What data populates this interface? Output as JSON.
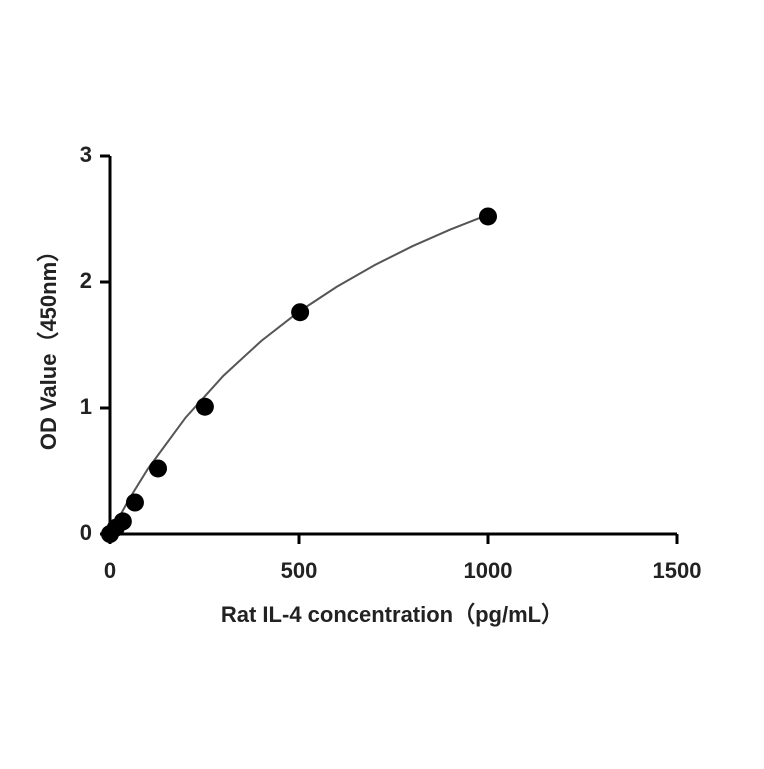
{
  "chart_data": {
    "type": "scatter",
    "x": [
      0,
      15.6,
      34,
      66,
      127,
      251,
      503,
      1000
    ],
    "values": [
      0.0,
      0.05,
      0.1,
      0.25,
      0.52,
      1.01,
      1.76,
      2.52
    ],
    "color": "#000000",
    "curve": {
      "x": [
        0,
        50,
        100,
        200,
        300,
        400,
        500,
        600,
        700,
        800,
        900,
        1000
      ],
      "values": [
        0,
        0.274,
        0.516,
        0.924,
        1.256,
        1.532,
        1.765,
        1.962,
        2.134,
        2.284,
        2.416,
        2.534
      ],
      "color": "#555555"
    },
    "xlabel": "Rat IL-4 concentration（pg/mL）",
    "ylabel": "OD Value（450nm）",
    "xlim": [
      0,
      1500
    ],
    "xticks": [
      0,
      500,
      1000,
      1500
    ],
    "ylim": [
      0,
      3
    ],
    "yticks": [
      0,
      1,
      2,
      3
    ]
  }
}
